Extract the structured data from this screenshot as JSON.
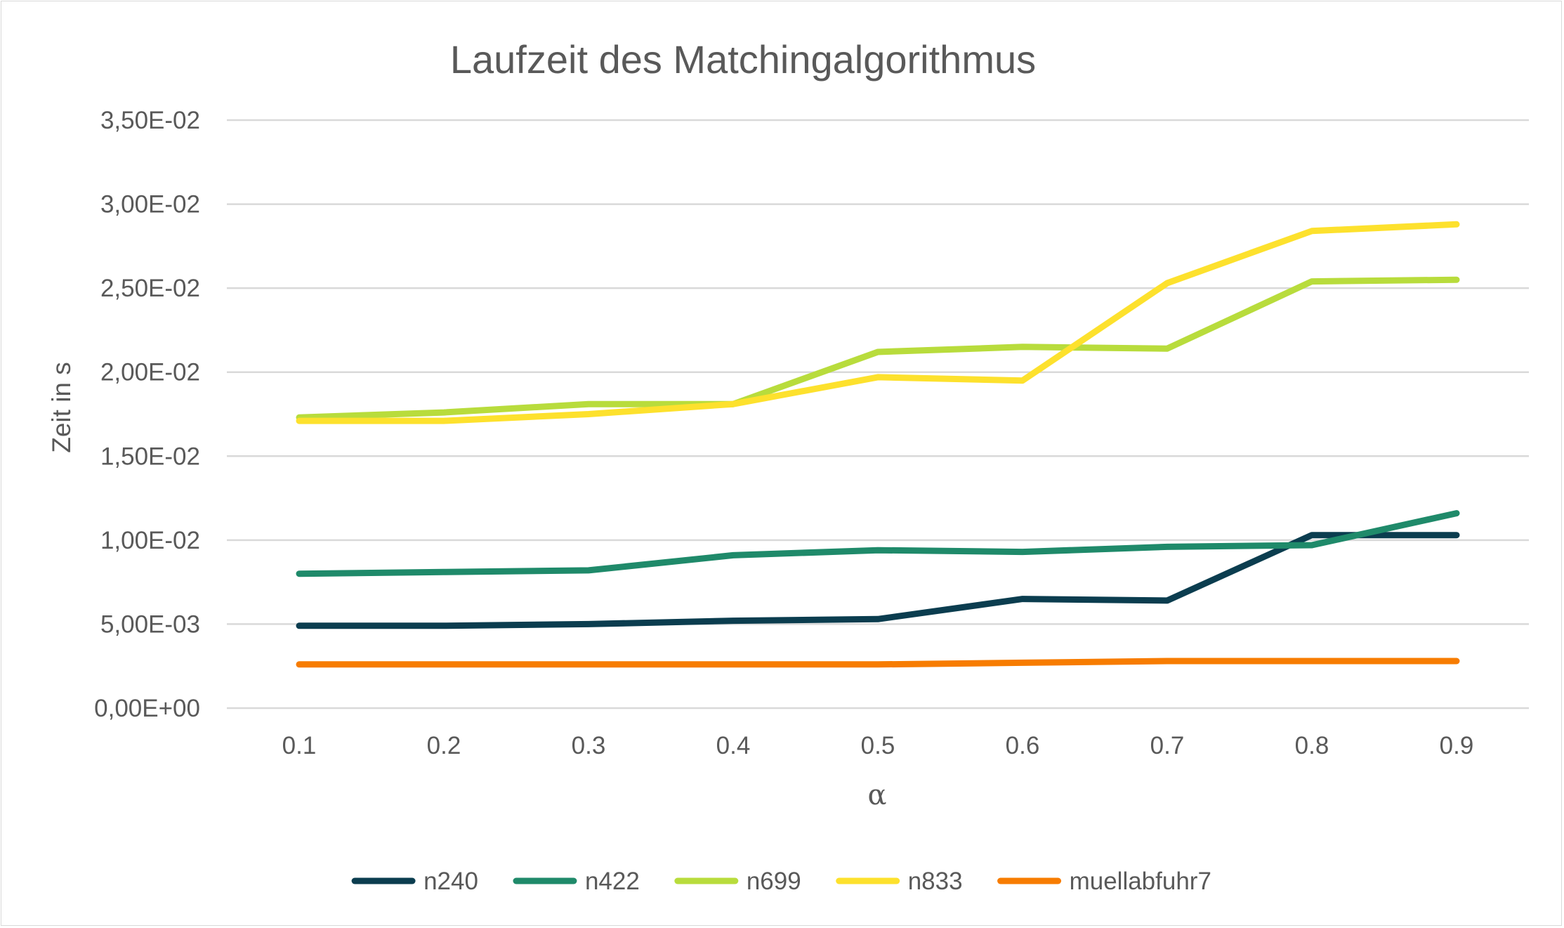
{
  "chart_data": {
    "type": "line",
    "title": "Laufzeit des Matchingalgorithmus",
    "xlabel": "α",
    "ylabel": "Zeit in s",
    "categories": [
      "0.1",
      "0.2",
      "0.3",
      "0.4",
      "0.5",
      "0.6",
      "0.7",
      "0.8",
      "0.9"
    ],
    "ylim": [
      0,
      0.035
    ],
    "yticks": [
      {
        "value": 0.0,
        "label": "0,00E+00"
      },
      {
        "value": 0.005,
        "label": "5,00E-03"
      },
      {
        "value": 0.01,
        "label": "1,00E-02"
      },
      {
        "value": 0.015,
        "label": "1,50E-02"
      },
      {
        "value": 0.02,
        "label": "2,00E-02"
      },
      {
        "value": 0.025,
        "label": "2,50E-02"
      },
      {
        "value": 0.03,
        "label": "3,00E-02"
      },
      {
        "value": 0.035,
        "label": "3,50E-02"
      }
    ],
    "grid": true,
    "legend_position": "bottom",
    "series": [
      {
        "name": "n240",
        "color": "#0b3d4f",
        "values": [
          0.0049,
          0.0049,
          0.005,
          0.0052,
          0.0053,
          0.0065,
          0.0064,
          0.0103,
          0.0103
        ]
      },
      {
        "name": "n422",
        "color": "#1f8a6a",
        "values": [
          0.008,
          0.0081,
          0.0082,
          0.0091,
          0.0094,
          0.0093,
          0.0096,
          0.0097,
          0.0116
        ]
      },
      {
        "name": "n699",
        "color": "#b8dc3c",
        "values": [
          0.0173,
          0.0176,
          0.0181,
          0.0181,
          0.0212,
          0.0215,
          0.0214,
          0.0254,
          0.0255
        ]
      },
      {
        "name": "n833",
        "color": "#fde12d",
        "values": [
          0.0171,
          0.0171,
          0.0175,
          0.0181,
          0.0197,
          0.0195,
          0.0253,
          0.0284,
          0.0288
        ]
      },
      {
        "name": "muellabfuhr7",
        "color": "#f77c00",
        "values": [
          0.0026,
          0.0026,
          0.0026,
          0.0026,
          0.0026,
          0.0027,
          0.0028,
          0.0028,
          0.0028
        ]
      }
    ]
  }
}
